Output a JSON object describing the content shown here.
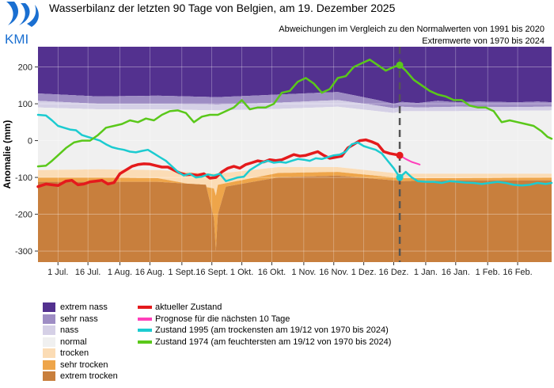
{
  "title": "Wasserbilanz der letzten 90 Tage von Belgien, am 19. Dezember 2025",
  "subtitle1": "Abweichungen im Vergleich zu den Normalwerten von 1991 bis 2020",
  "subtitle2": "Extremwerte von 1970 bis 2024",
  "logo_text": "KMI",
  "colors": {
    "extrem_nass": "#53318f",
    "sehr_nass": "#9e8dc4",
    "nass": "#d5d0e6",
    "normal": "#f0f0f0",
    "trocken": "#fbdcb5",
    "sehr_trocken": "#eea54a",
    "extrem_trocken": "#c87f3d",
    "aktuell": "#e41a1c",
    "prognose": "#ff3fba",
    "z1995": "#1ccbd0",
    "z1974": "#5ac81a"
  },
  "legend": {
    "bands": [
      "extrem nass",
      "sehr nass",
      "nass",
      "normal",
      "trocken",
      "sehr trocken",
      "extrem trocken"
    ],
    "lines": [
      "aktueller Zustand",
      "Prognose für die nächsten 10 Tage",
      "Zustand 1995 (am trockensten am 19/12 von 1970 bis 2024)",
      "Zustand 1974 (am feuchtersten am 19/12 von 1970 bis 2024)"
    ]
  },
  "chart_data": {
    "type": "line",
    "ylabel": "Anomalie (mm)",
    "xlabel": "",
    "ylim": [
      -330,
      255
    ],
    "yticks": [
      200,
      100,
      0,
      -100,
      -200,
      -300
    ],
    "xlim": [
      0,
      247
    ],
    "xticks": [
      {
        "x": 0,
        "label": "1 Jul."
      },
      {
        "x": 15,
        "label": "16 Jul."
      },
      {
        "x": 31,
        "label": "1 Aug."
      },
      {
        "x": 46,
        "label": "16 Aug."
      },
      {
        "x": 62,
        "label": "1 Sept."
      },
      {
        "x": 77,
        "label": "16 Sept."
      },
      {
        "x": 92,
        "label": "1 Okt."
      },
      {
        "x": 107,
        "label": "16 Okt."
      },
      {
        "x": 123,
        "label": "1 Nov."
      },
      {
        "x": 138,
        "label": "16 Nov."
      },
      {
        "x": 153,
        "label": "1 Dez."
      },
      {
        "x": 168,
        "label": "16 Dez."
      },
      {
        "x": 184,
        "label": "1 Jan."
      },
      {
        "x": 199,
        "label": "16 Jan."
      },
      {
        "x": 215,
        "label": "1 Feb."
      },
      {
        "x": 230,
        "label": "16 Feb."
      }
    ],
    "today_x": 171,
    "series": [
      {
        "name": "aktueller Zustand",
        "color": "#e41a1c",
        "x": [
          -10,
          -6,
          -3,
          0,
          4,
          7,
          10,
          13,
          16,
          19,
          22,
          25,
          28,
          31,
          34,
          37,
          40,
          43,
          46,
          49,
          52,
          55,
          58,
          61,
          64,
          67,
          70,
          73,
          76,
          79,
          82,
          85,
          88,
          91,
          94,
          97,
          100,
          103,
          106,
          109,
          112,
          115,
          118,
          121,
          124,
          127,
          130,
          133,
          136,
          139,
          142,
          145,
          148,
          151,
          154,
          157,
          160,
          163,
          166,
          169,
          171
        ],
        "y": [
          -125,
          -118,
          -120,
          -122,
          -110,
          -108,
          -120,
          -118,
          -112,
          -110,
          -108,
          -118,
          -114,
          -90,
          -80,
          -70,
          -65,
          -63,
          -64,
          -68,
          -72,
          -72,
          -80,
          -88,
          -93,
          -92,
          -94,
          -90,
          -102,
          -100,
          -85,
          -75,
          -70,
          -75,
          -65,
          -60,
          -55,
          -58,
          -52,
          -54,
          -52,
          -45,
          -38,
          -42,
          -40,
          -35,
          -30,
          -40,
          -48,
          -45,
          -42,
          -20,
          -10,
          0,
          2,
          -3,
          -10,
          -30,
          -35,
          -38,
          -40
        ]
      },
      {
        "name": "Prognose für die nächsten 10 Tage",
        "color": "#ff3fba",
        "x": [
          171,
          174,
          177,
          180,
          181
        ],
        "y": [
          -40,
          -50,
          -58,
          -63,
          -65
        ]
      },
      {
        "name": "Zustand 1995",
        "color": "#1ccbd0",
        "x": [
          -10,
          -6,
          -3,
          0,
          3,
          6,
          9,
          12,
          15,
          18,
          21,
          24,
          27,
          30,
          33,
          36,
          39,
          42,
          45,
          48,
          51,
          54,
          57,
          60,
          63,
          66,
          69,
          72,
          75,
          78,
          81,
          84,
          87,
          90,
          93,
          96,
          99,
          102,
          105,
          108,
          111,
          114,
          117,
          120,
          123,
          126,
          129,
          132,
          135,
          138,
          141,
          144,
          147,
          150,
          153,
          156,
          159,
          162,
          165,
          168,
          171,
          174,
          177,
          180,
          184,
          188,
          192,
          196,
          200,
          204,
          208,
          212,
          216,
          220,
          224,
          228,
          232,
          236,
          240,
          244,
          247
        ],
        "y": [
          70,
          68,
          55,
          40,
          35,
          30,
          28,
          15,
          10,
          5,
          0,
          -10,
          -18,
          -22,
          -25,
          -30,
          -32,
          -28,
          -25,
          -35,
          -45,
          -55,
          -70,
          -85,
          -95,
          -90,
          -100,
          -98,
          -92,
          -95,
          -90,
          -110,
          -105,
          -100,
          -98,
          -80,
          -70,
          -60,
          -55,
          -60,
          -58,
          -60,
          -55,
          -50,
          -52,
          -55,
          -48,
          -50,
          -45,
          -40,
          -38,
          -30,
          -10,
          -5,
          -15,
          -20,
          -25,
          -35,
          -55,
          -75,
          -100,
          -85,
          -100,
          -110,
          -112,
          -112,
          -115,
          -110,
          -112,
          -114,
          -115,
          -118,
          -115,
          -112,
          -115,
          -120,
          -122,
          -120,
          -115,
          -118,
          -115
        ]
      },
      {
        "name": "Zustand 1974",
        "color": "#5ac81a",
        "x": [
          -10,
          -6,
          -3,
          0,
          4,
          8,
          12,
          16,
          20,
          24,
          28,
          32,
          36,
          40,
          44,
          48,
          52,
          56,
          60,
          64,
          68,
          72,
          76,
          80,
          84,
          88,
          92,
          96,
          100,
          104,
          108,
          112,
          116,
          120,
          124,
          128,
          132,
          136,
          140,
          144,
          148,
          152,
          156,
          160,
          164,
          168,
          171,
          174,
          178,
          182,
          186,
          190,
          194,
          198,
          202,
          206,
          210,
          214,
          218,
          222,
          226,
          230,
          234,
          238,
          242,
          245,
          247
        ],
        "y": [
          -70,
          -68,
          -55,
          -40,
          -20,
          -5,
          0,
          0,
          15,
          35,
          40,
          45,
          55,
          50,
          60,
          55,
          70,
          80,
          82,
          75,
          50,
          65,
          70,
          70,
          80,
          90,
          110,
          85,
          90,
          90,
          100,
          130,
          135,
          160,
          170,
          155,
          130,
          140,
          170,
          175,
          200,
          210,
          220,
          205,
          190,
          200,
          205,
          190,
          165,
          150,
          135,
          125,
          120,
          110,
          110,
          95,
          90,
          90,
          80,
          50,
          55,
          50,
          45,
          40,
          25,
          10,
          5
        ]
      }
    ],
    "bands": [
      {
        "name": "extrem nass",
        "upper": 258,
        "lower_x": [
          -10,
          20,
          50,
          80,
          110,
          140,
          160,
          168,
          172,
          180,
          190,
          200,
          210,
          220,
          230,
          240,
          247
        ],
        "lower_y": [
          128,
          120,
          122,
          118,
          125,
          132,
          110,
          100,
          105,
          102,
          108,
          104,
          106,
          105,
          104,
          106,
          104
        ]
      },
      {
        "name": "sehr nass",
        "upper": "lower of extrem nass",
        "lower_x": [
          -10,
          20,
          50,
          80,
          110,
          140,
          160,
          168,
          172,
          180,
          200,
          220,
          247
        ],
        "lower_y": [
          108,
          100,
          100,
          98,
          103,
          110,
          95,
          88,
          92,
          90,
          92,
          91,
          92
        ]
      },
      {
        "name": "nass",
        "lower_x": [
          -10,
          20,
          50,
          80,
          110,
          140,
          168,
          172,
          200,
          247
        ],
        "lower_y": [
          90,
          85,
          85,
          82,
          86,
          92,
          75,
          80,
          80,
          82
        ]
      },
      {
        "name": "normal",
        "lower_x": [
          -10,
          20,
          50,
          80,
          110,
          140,
          168,
          172,
          200,
          247
        ],
        "lower_y": [
          -80,
          -78,
          -80,
          -90,
          -72,
          -72,
          -88,
          -90,
          -90,
          -90
        ]
      },
      {
        "name": "trocken",
        "lower_x": [
          -10,
          20,
          50,
          78,
          79,
          80,
          110,
          140,
          168,
          172,
          200,
          247
        ],
        "lower_y": [
          -100,
          -100,
          -102,
          -130,
          -150,
          -120,
          -88,
          -85,
          -100,
          -102,
          -102,
          -100
        ]
      },
      {
        "name": "sehr trocken",
        "lower_x": [
          -10,
          20,
          50,
          74,
          78,
          79,
          80,
          84,
          110,
          140,
          168,
          172,
          200,
          247
        ],
        "lower_y": [
          -112,
          -112,
          -112,
          -120,
          -210,
          -300,
          -200,
          -125,
          -100,
          -95,
          -108,
          -110,
          -108,
          -108
        ]
      },
      {
        "name": "extrem trocken",
        "lower": -330
      }
    ]
  }
}
